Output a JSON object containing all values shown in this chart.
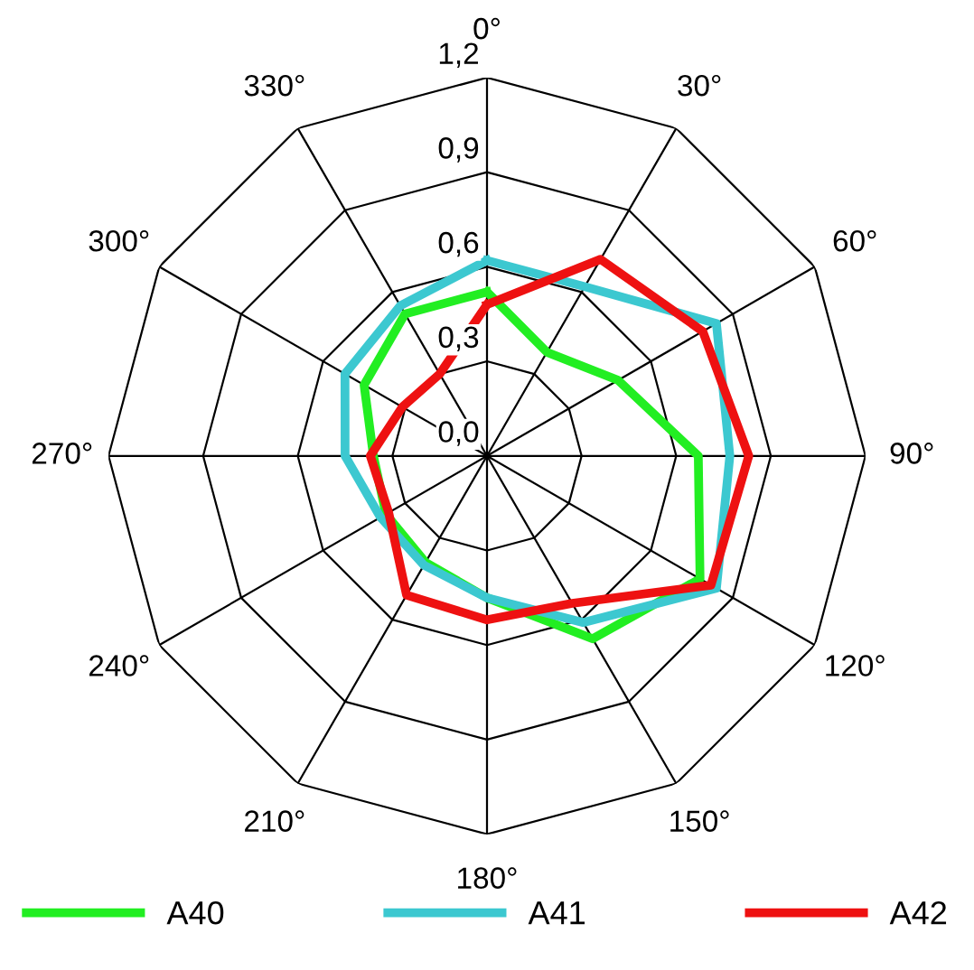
{
  "chart_data": {
    "type": "radar",
    "categories": [
      "0°",
      "30°",
      "60°",
      "90°",
      "120°",
      "150°",
      "180°",
      "210°",
      "240°",
      "270°",
      "300°",
      "330°"
    ],
    "ylim": [
      0,
      1.2
    ],
    "yticks": [
      {
        "value": 0,
        "label": "0,0"
      },
      {
        "value": 0.3,
        "label": "0,3"
      },
      {
        "value": 0.6,
        "label": "0,6"
      },
      {
        "value": 0.9,
        "label": "0,9"
      },
      {
        "value": 1.2,
        "label": "1,2"
      }
    ],
    "grid": true,
    "legend": "bottom",
    "marker": "none",
    "line_style": "solid",
    "series": [
      {
        "name": "A40",
        "color": "#22ee22",
        "values": [
          0.52,
          0.38,
          0.48,
          0.67,
          0.78,
          0.67,
          0.45,
          0.39,
          0.37,
          0.36,
          0.45,
          0.52
        ]
      },
      {
        "name": "A41",
        "color": "#3cc8d0",
        "values": [
          0.62,
          0.62,
          0.84,
          0.77,
          0.84,
          0.61,
          0.45,
          0.4,
          0.39,
          0.45,
          0.52,
          0.55
        ]
      },
      {
        "name": "A42",
        "color": "#ee1111",
        "values": [
          0.48,
          0.72,
          0.79,
          0.83,
          0.82,
          0.54,
          0.52,
          0.51,
          0.36,
          0.37,
          0.31,
          0.3
        ]
      }
    ]
  }
}
